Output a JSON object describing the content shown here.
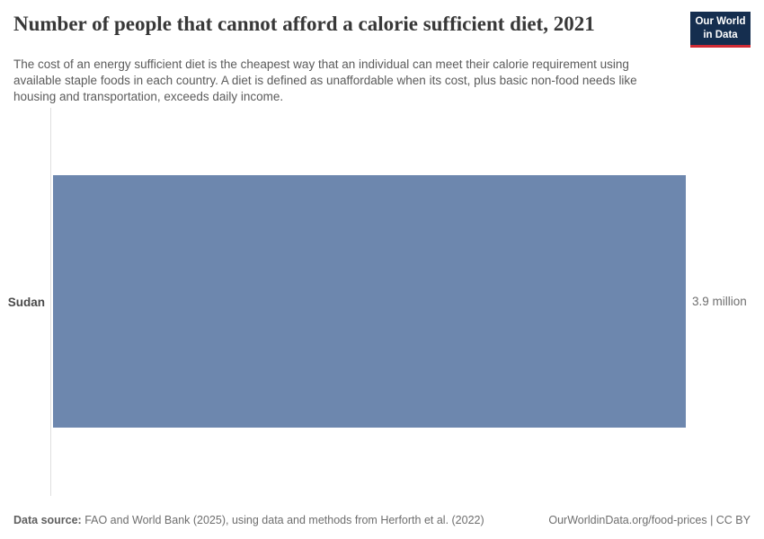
{
  "header": {
    "title": "Number of people that cannot afford a calorie sufficient diet, 2021",
    "logo": {
      "line1": "Our World",
      "line2": "in Data"
    }
  },
  "subtitle": "The cost of an energy sufficient diet is the cheapest way that an individual can meet their calorie requirement using available staple foods in each country. A diet is defined as unaffordable when its cost, plus basic non-food needs like housing and transportation, exceeds daily income.",
  "chart_data": {
    "type": "bar",
    "orientation": "horizontal",
    "title": "Number of people that cannot afford a calorie sufficient diet, 2021",
    "categories": [
      "Sudan"
    ],
    "values": [
      3.9
    ],
    "unit": "million",
    "value_labels": [
      "3.9 million"
    ],
    "xlabel": "",
    "ylabel": "",
    "xlim": [
      0,
      3.9
    ],
    "grid": false,
    "legend": false
  },
  "colors": {
    "bar": "#6d87ae",
    "axis": "#dedede",
    "logo_bg": "#152e4f",
    "logo_red": "#d02b35"
  },
  "footer": {
    "datasource_label": "Data source:",
    "datasource_text": " FAO and World Bank (2025), using data and methods from Herforth et al. (2022)",
    "right_text": "OurWorldinData.org/food-prices | CC BY"
  }
}
